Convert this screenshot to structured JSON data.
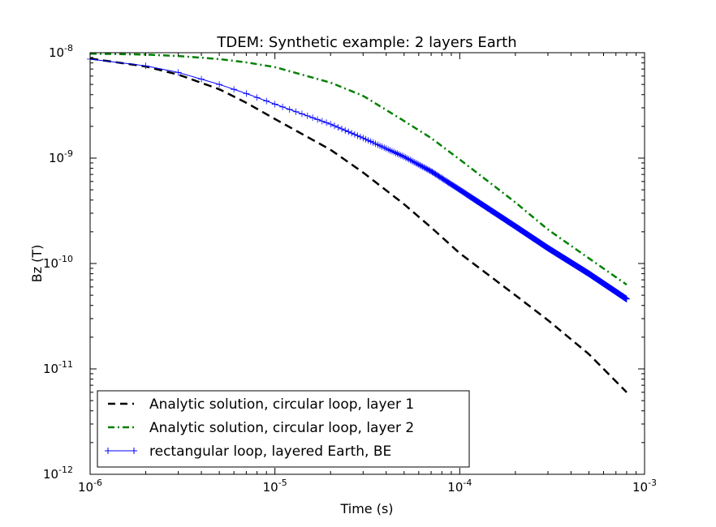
{
  "chart_data": {
    "type": "line",
    "title": "TDEM: Synthetic example: 2 layers Earth",
    "xlabel": "Time (s)",
    "ylabel": "Bz (T)",
    "xscale": "log",
    "yscale": "log",
    "xlim": [
      1e-06,
      0.001
    ],
    "ylim": [
      1e-12,
      1e-08
    ],
    "x_ticks": [
      {
        "value": 1e-06,
        "base": "10",
        "exp": "-6"
      },
      {
        "value": 1e-05,
        "base": "10",
        "exp": "-5"
      },
      {
        "value": 0.0001,
        "base": "10",
        "exp": "-4"
      },
      {
        "value": 0.001,
        "base": "10",
        "exp": "-3"
      }
    ],
    "y_ticks": [
      {
        "value": 1e-12,
        "base": "10",
        "exp": "-12"
      },
      {
        "value": 1e-11,
        "base": "10",
        "exp": "-11"
      },
      {
        "value": 1e-10,
        "base": "10",
        "exp": "-10"
      },
      {
        "value": 1e-09,
        "base": "10",
        "exp": "-9"
      },
      {
        "value": 1e-08,
        "base": "10",
        "exp": "-8"
      }
    ],
    "grid": false,
    "legend_position": "lower-left",
    "series": [
      {
        "name": "Analytic solution, circular loop, layer 1",
        "color": "#000000",
        "style": "dashed",
        "marker": "none",
        "points": [
          [
            1e-06,
            8.8e-09
          ],
          [
            2e-06,
            7.4e-09
          ],
          [
            3e-06,
            6.2e-09
          ],
          [
            5e-06,
            4.5e-09
          ],
          [
            7e-06,
            3.35e-09
          ],
          [
            1e-05,
            2.35e-09
          ],
          [
            2e-05,
            1.2e-09
          ],
          [
            3e-05,
            7.3e-10
          ],
          [
            5e-05,
            3.65e-10
          ],
          [
            7e-05,
            2.2e-10
          ],
          [
            0.0001,
            1.25e-10
          ],
          [
            0.0002,
            5e-11
          ],
          [
            0.0003,
            2.9e-11
          ],
          [
            0.0005,
            1.38e-11
          ],
          [
            0.0008,
            6e-12
          ]
        ]
      },
      {
        "name": "Analytic solution, circular loop, layer 2",
        "color": "#008000",
        "style": "dashdot",
        "marker": "none",
        "points": [
          [
            1e-06,
            9.8e-09
          ],
          [
            2e-06,
            9.6e-09
          ],
          [
            3e-06,
            9.3e-09
          ],
          [
            5e-06,
            8.7e-09
          ],
          [
            7e-06,
            8.1e-09
          ],
          [
            1e-05,
            7.3e-09
          ],
          [
            2e-05,
            5.2e-09
          ],
          [
            3e-05,
            3.9e-09
          ],
          [
            5e-05,
            2.25e-09
          ],
          [
            7e-05,
            1.55e-09
          ],
          [
            0.0001,
            9.7e-10
          ],
          [
            0.0002,
            3.8e-10
          ],
          [
            0.0003,
            2.1e-10
          ],
          [
            0.0005,
            1.12e-10
          ],
          [
            0.0008,
            6.3e-11
          ]
        ]
      },
      {
        "name": "rectangular loop, layered Earth, BE",
        "color": "#0000ff",
        "style": "solid",
        "marker": "+",
        "points": [
          [
            1e-06,
            8.7e-09
          ],
          [
            2e-06,
            7.5e-09
          ],
          [
            3e-06,
            6.5e-09
          ],
          [
            5e-06,
            5e-09
          ],
          [
            7e-06,
            4.1e-09
          ],
          [
            1e-05,
            3.25e-09
          ],
          [
            2e-05,
            2.1e-09
          ],
          [
            3e-05,
            1.55e-09
          ],
          [
            5e-05,
            1.03e-09
          ],
          [
            7e-05,
            7.5e-10
          ],
          [
            0.0001,
            5e-10
          ],
          [
            0.0002,
            2.25e-10
          ],
          [
            0.0003,
            1.4e-10
          ],
          [
            0.0005,
            8e-11
          ],
          [
            0.0008,
            4.6e-11
          ]
        ]
      }
    ]
  }
}
